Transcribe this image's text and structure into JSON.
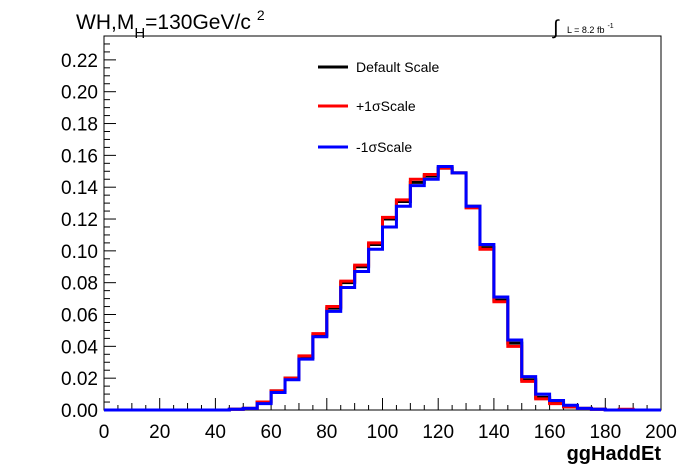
{
  "chart_data": {
    "type": "line",
    "style": "step-histogram",
    "title": {
      "main": "WH,M",
      "subscript": "H",
      "rest": "=130GeV/c",
      "superscript": "2"
    },
    "luminosity": {
      "symbol": "∫",
      "text": "L = 8.2 fb",
      "superscript": "-1"
    },
    "xlabel": "ggHaddEt",
    "ylabel": "",
    "xlim": [
      0,
      200
    ],
    "ylim": [
      0,
      0.235
    ],
    "x_ticks": [
      "0",
      "20",
      "40",
      "60",
      "80",
      "100",
      "120",
      "140",
      "160",
      "180",
      "200"
    ],
    "y_ticks": [
      "0.00",
      "0.02",
      "0.04",
      "0.06",
      "0.08",
      "0.10",
      "0.12",
      "0.14",
      "0.16",
      "0.18",
      "0.20",
      "0.22"
    ],
    "grid": false,
    "legend_position": "top-center",
    "bin_edges": [
      0,
      5,
      10,
      15,
      20,
      25,
      30,
      35,
      40,
      45,
      50,
      55,
      60,
      65,
      70,
      75,
      80,
      85,
      90,
      95,
      100,
      105,
      110,
      115,
      120,
      125,
      130,
      135,
      140,
      145,
      150,
      155,
      160,
      165,
      170,
      175,
      180,
      185,
      190,
      195,
      200
    ],
    "series": [
      {
        "name": "Default Scale",
        "color": "#000000",
        "values": [
          0,
          0,
          0,
          0,
          0,
          0,
          0,
          0,
          0,
          0.0005,
          0.001,
          0.005,
          0.012,
          0.02,
          0.033,
          0.047,
          0.064,
          0.08,
          0.09,
          0.104,
          0.12,
          0.131,
          0.143,
          0.147,
          0.152,
          0.149,
          0.128,
          0.102,
          0.069,
          0.042,
          0.019,
          0.008,
          0.005,
          0.002,
          0.001,
          0.0005,
          0,
          0,
          0,
          0
        ]
      },
      {
        "name": "+1σScale",
        "color": "#ff0000",
        "values": [
          0,
          0,
          0,
          0,
          0,
          0,
          0,
          0,
          0,
          0.0005,
          0.001,
          0.005,
          0.012,
          0.02,
          0.034,
          0.048,
          0.065,
          0.081,
          0.091,
          0.105,
          0.121,
          0.132,
          0.145,
          0.148,
          0.152,
          0.149,
          0.127,
          0.101,
          0.068,
          0.04,
          0.018,
          0.007,
          0.004,
          0.002,
          0.001,
          0.0005,
          0,
          0.0005,
          0,
          0
        ]
      },
      {
        "name": "-1σScale",
        "color": "#0000ff",
        "values": [
          0,
          0,
          0,
          0,
          0,
          0,
          0,
          0,
          0,
          0.0005,
          0.001,
          0.004,
          0.011,
          0.019,
          0.032,
          0.046,
          0.062,
          0.077,
          0.087,
          0.101,
          0.115,
          0.128,
          0.141,
          0.145,
          0.153,
          0.149,
          0.128,
          0.104,
          0.071,
          0.044,
          0.021,
          0.01,
          0.006,
          0.003,
          0.001,
          0.0005,
          0,
          0,
          0,
          0
        ]
      }
    ]
  }
}
